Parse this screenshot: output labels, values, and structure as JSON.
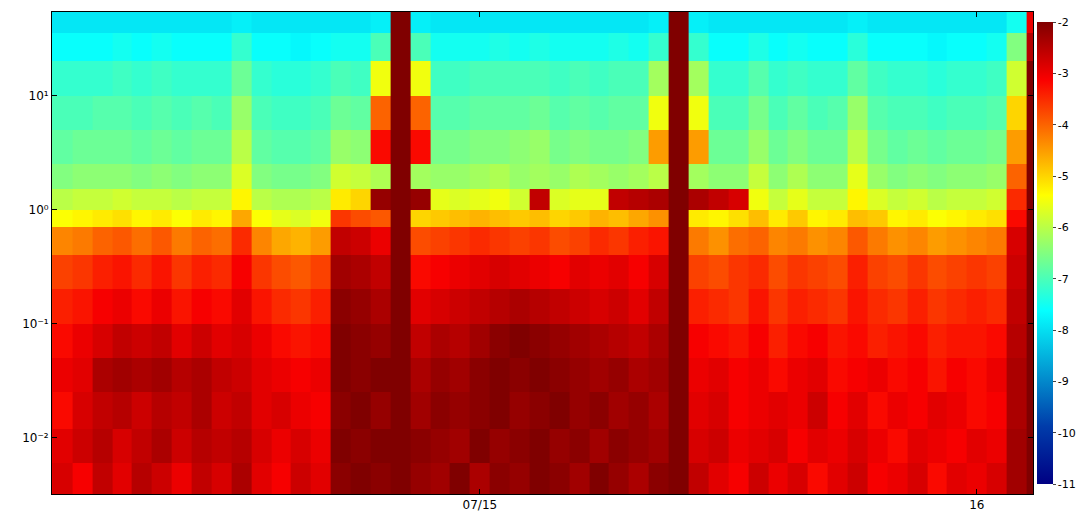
{
  "chart_data": {
    "type": "heatmap",
    "log": "y",
    "xlim": [
      14.139,
      16.113
    ],
    "ylim": [
      0.0032,
      54
    ],
    "xticks": [
      {
        "value": 15,
        "label": "07/15"
      },
      {
        "value": 16,
        "label": "16"
      }
    ],
    "yticks": [
      {
        "value": 0.01,
        "label": "10⁻²"
      },
      {
        "value": 0.1,
        "label": "10⁻¹"
      },
      {
        "value": 1,
        "label": "10⁰"
      },
      {
        "value": 10,
        "label": "10¹"
      }
    ],
    "color_range": [
      -11,
      -2
    ],
    "color_ticks": [
      -2,
      -3,
      -4,
      -5,
      -6,
      -7,
      -8,
      -9,
      -10,
      -11
    ],
    "x_bins": [
      14.1,
      14.14,
      14.18,
      14.22,
      14.26,
      14.3,
      14.34,
      14.38,
      14.42,
      14.46,
      14.5,
      14.54,
      14.58,
      14.62,
      14.66,
      14.7,
      14.74,
      14.78,
      14.82,
      14.86,
      14.9,
      14.94,
      14.98,
      15.02,
      15.06,
      15.1,
      15.14,
      15.18,
      15.22,
      15.26,
      15.3,
      15.34,
      15.38,
      15.42,
      15.46,
      15.5,
      15.54,
      15.58,
      15.62,
      15.66,
      15.7,
      15.74,
      15.78,
      15.82,
      15.86,
      15.9,
      15.94,
      15.98,
      16.02,
      16.06,
      16.1,
      16.14
    ],
    "y_bins": [
      0.0032,
      0.006,
      0.012,
      0.025,
      0.05,
      0.1,
      0.2,
      0.4,
      0.7,
      1.0,
      1.5,
      2.5,
      5,
      10,
      20,
      35,
      54
    ],
    "z": [
      [
        -3.0,
        -2.8,
        -3.1,
        -2.6,
        -2.9,
        -2.5,
        -2.7,
        -3.0,
        -2.6,
        -2.8,
        -2.4,
        -2.9,
        -3.1,
        -2.7,
        -2.9,
        -2.1,
        -2.0,
        -2.1,
        -2.0,
        -2.2,
        -2.3,
        -2.0,
        -2.4,
        -2.1,
        -2.2,
        -2.0,
        -2.1,
        -2.3,
        -2.0,
        -2.2,
        -2.4,
        -2.1,
        -2.0,
        -2.6,
        -2.9,
        -3.1,
        -2.7,
        -3.0,
        -2.8,
        -3.2,
        -2.9,
        -2.7,
        -3.1,
        -3.0,
        -2.8,
        -3.2,
        -2.9,
        -3.0,
        -2.8,
        -2.3,
        -2.0
      ],
      [
        -3.1,
        -2.9,
        -2.7,
        -2.5,
        -2.8,
        -2.6,
        -2.4,
        -2.7,
        -2.5,
        -2.6,
        -2.5,
        -2.8,
        -3.0,
        -2.8,
        -3.0,
        -2.0,
        -2.1,
        -2.0,
        -2.0,
        -2.1,
        -2.2,
        -2.3,
        -2.0,
        -2.2,
        -2.1,
        -2.0,
        -2.2,
        -2.1,
        -2.3,
        -2.1,
        -2.2,
        -2.3,
        -2.0,
        -2.8,
        -2.7,
        -3.0,
        -2.9,
        -2.8,
        -3.1,
        -2.9,
        -3.0,
        -2.8,
        -3.0,
        -3.2,
        -2.9,
        -3.0,
        -3.1,
        -2.9,
        -3.0,
        -2.3,
        -2.0
      ],
      [
        -3.0,
        -3.2,
        -2.8,
        -2.6,
        -2.5,
        -2.7,
        -2.5,
        -2.6,
        -2.4,
        -2.7,
        -2.6,
        -2.9,
        -2.8,
        -3.0,
        -3.1,
        -2.1,
        -2.0,
        -2.2,
        -2.0,
        -2.3,
        -2.1,
        -2.2,
        -2.1,
        -2.0,
        -2.2,
        -2.1,
        -2.0,
        -2.2,
        -2.1,
        -2.3,
        -2.2,
        -2.4,
        -2.0,
        -2.9,
        -2.8,
        -3.1,
        -3.0,
        -2.9,
        -3.0,
        -2.7,
        -3.1,
        -2.9,
        -3.2,
        -3.0,
        -3.1,
        -2.9,
        -3.0,
        -3.2,
        -3.1,
        -2.4,
        -2.0
      ],
      [
        -3.1,
        -3.0,
        -2.9,
        -2.4,
        -2.3,
        -2.4,
        -2.3,
        -2.5,
        -2.4,
        -2.6,
        -2.7,
        -2.9,
        -3.0,
        -3.1,
        -3.0,
        -2.0,
        -2.1,
        -2.0,
        -2.0,
        -2.4,
        -2.2,
        -2.3,
        -2.1,
        -2.0,
        -2.1,
        -2.0,
        -2.1,
        -2.2,
        -2.3,
        -2.2,
        -2.4,
        -2.3,
        -2.0,
        -3.0,
        -2.9,
        -3.1,
        -3.0,
        -3.2,
        -3.0,
        -2.9,
        -3.2,
        -3.1,
        -3.0,
        -3.2,
        -3.1,
        -3.3,
        -3.1,
        -3.2,
        -3.0,
        -2.4,
        -2.0
      ],
      [
        -3.3,
        -3.2,
        -3.0,
        -2.8,
        -2.6,
        -2.7,
        -2.6,
        -2.9,
        -2.7,
        -2.9,
        -2.8,
        -3.0,
        -3.2,
        -3.3,
        -3.2,
        -2.0,
        -2.1,
        -2.2,
        -2.0,
        -2.6,
        -2.4,
        -2.5,
        -2.3,
        -2.1,
        -2.0,
        -2.1,
        -2.2,
        -2.3,
        -2.4,
        -2.5,
        -2.6,
        -2.4,
        -2.0,
        -3.1,
        -3.2,
        -3.3,
        -3.1,
        -3.4,
        -3.2,
        -3.1,
        -3.3,
        -3.2,
        -3.4,
        -3.3,
        -3.2,
        -3.4,
        -3.3,
        -3.3,
        -3.2,
        -2.5,
        -2.0
      ],
      [
        -3.5,
        -3.4,
        -3.3,
        -3.1,
        -3.0,
        -3.2,
        -3.0,
        -3.3,
        -3.1,
        -3.2,
        -2.9,
        -3.3,
        -3.5,
        -3.6,
        -3.4,
        -2.1,
        -2.2,
        -2.4,
        -2.0,
        -2.9,
        -2.8,
        -2.7,
        -2.6,
        -2.5,
        -2.4,
        -2.5,
        -2.6,
        -2.7,
        -2.8,
        -2.7,
        -2.9,
        -2.6,
        -2.0,
        -3.4,
        -3.5,
        -3.6,
        -3.3,
        -3.6,
        -3.4,
        -3.5,
        -3.6,
        -3.3,
        -3.5,
        -3.6,
        -3.4,
        -3.6,
        -3.5,
        -3.4,
        -3.5,
        -2.6,
        -2.0
      ],
      [
        -3.8,
        -3.7,
        -3.6,
        -3.4,
        -3.3,
        -3.5,
        -3.3,
        -3.6,
        -3.4,
        -3.5,
        -3.1,
        -3.6,
        -3.8,
        -3.9,
        -3.7,
        -2.3,
        -2.4,
        -2.6,
        -2.0,
        -3.2,
        -3.1,
        -3.0,
        -2.9,
        -2.8,
        -2.9,
        -3.0,
        -3.1,
        -2.9,
        -3.0,
        -2.9,
        -3.1,
        -2.8,
        -2.0,
        -3.7,
        -3.8,
        -3.6,
        -3.5,
        -3.8,
        -3.6,
        -3.7,
        -3.8,
        -3.4,
        -3.7,
        -3.8,
        -3.6,
        -3.8,
        -3.7,
        -3.6,
        -3.7,
        -2.7,
        -2.0
      ],
      [
        -4.4,
        -4.3,
        -4.2,
        -4.0,
        -3.9,
        -4.1,
        -3.9,
        -4.2,
        -4.0,
        -4.1,
        -3.5,
        -4.3,
        -4.6,
        -4.7,
        -4.5,
        -2.6,
        -2.7,
        -3.0,
        -2.0,
        -3.8,
        -3.7,
        -3.6,
        -3.5,
        -3.6,
        -3.7,
        -3.6,
        -3.8,
        -3.7,
        -3.5,
        -3.6,
        -3.4,
        -3.3,
        -2.0,
        -4.2,
        -4.4,
        -4.1,
        -4.0,
        -4.3,
        -4.2,
        -4.4,
        -4.3,
        -3.9,
        -4.2,
        -4.4,
        -4.3,
        -4.5,
        -4.4,
        -4.3,
        -4.2,
        -2.8,
        -2.0
      ],
      [
        -5.5,
        -5.4,
        -5.3,
        -5.2,
        -5.1,
        -5.3,
        -5.2,
        -5.4,
        -5.2,
        -5.3,
        -4.6,
        -5.4,
        -5.6,
        -5.7,
        -5.5,
        -3.6,
        -3.8,
        -3.9,
        -2.0,
        -5.0,
        -4.9,
        -4.8,
        -4.7,
        -4.8,
        -4.9,
        -4.8,
        -5.0,
        -4.9,
        -4.7,
        -4.8,
        -4.6,
        -4.4,
        -2.0,
        -5.2,
        -5.3,
        -5.1,
        -4.8,
        -5.2,
        -4.9,
        -5.3,
        -5.2,
        -4.8,
        -4.9,
        -5.3,
        -5.2,
        -5.4,
        -5.3,
        -5.2,
        -5.1,
        -3.2,
        -2.0
      ],
      [
        -6.0,
        -6.0,
        -5.9,
        -5.9,
        -5.8,
        -5.9,
        -5.9,
        -6.0,
        -5.9,
        -5.9,
        -5.3,
        -6.0,
        -6.1,
        -6.1,
        -6.0,
        -5.2,
        -5.0,
        -2.2,
        -2.0,
        -2.2,
        -5.6,
        -5.7,
        -5.6,
        -5.5,
        -5.8,
        -2.6,
        -5.7,
        -5.6,
        -5.6,
        -2.6,
        -2.5,
        -2.4,
        -2.0,
        -2.4,
        -2.6,
        -2.8,
        -5.5,
        -5.9,
        -5.6,
        -5.9,
        -5.9,
        -5.3,
        -5.7,
        -5.9,
        -5.8,
        -6.0,
        -5.9,
        -5.9,
        -5.8,
        -3.5,
        -2.0
      ],
      [
        -6.5,
        -6.5,
        -6.4,
        -6.4,
        -6.4,
        -6.5,
        -6.4,
        -6.5,
        -6.4,
        -6.4,
        -5.7,
        -6.5,
        -6.6,
        -6.6,
        -6.5,
        -5.8,
        -5.9,
        -6.1,
        -2.0,
        -6.2,
        -6.3,
        -6.3,
        -6.2,
        -6.1,
        -6.3,
        -6.2,
        -6.3,
        -6.1,
        -6.2,
        -6.3,
        -6.2,
        -6.0,
        -2.0,
        -6.2,
        -6.4,
        -6.4,
        -5.9,
        -6.4,
        -6.1,
        -6.4,
        -6.4,
        -5.6,
        -6.3,
        -6.5,
        -6.4,
        -6.5,
        -6.4,
        -6.4,
        -6.3,
        -4.0,
        -2.0
      ],
      [
        -6.8,
        -6.8,
        -6.7,
        -6.7,
        -6.7,
        -6.8,
        -6.7,
        -6.8,
        -6.7,
        -6.7,
        -6.0,
        -6.8,
        -6.9,
        -6.9,
        -6.8,
        -6.3,
        -6.4,
        -3.2,
        -2.0,
        -3.2,
        -6.6,
        -6.6,
        -6.5,
        -6.5,
        -6.4,
        -6.3,
        -6.6,
        -6.5,
        -6.6,
        -6.6,
        -6.5,
        -4.5,
        -2.0,
        -4.5,
        -6.7,
        -6.7,
        -6.3,
        -6.7,
        -6.5,
        -6.7,
        -6.7,
        -6.0,
        -6.6,
        -6.8,
        -6.7,
        -6.8,
        -6.7,
        -6.7,
        -6.6,
        -4.5,
        -2.0
      ],
      [
        -7.0,
        -7.0,
        -7.0,
        -6.9,
        -6.9,
        -7.0,
        -6.9,
        -7.0,
        -6.9,
        -7.0,
        -6.3,
        -7.0,
        -7.1,
        -7.1,
        -7.0,
        -6.7,
        -6.8,
        -4.0,
        -2.0,
        -4.0,
        -6.9,
        -6.9,
        -6.8,
        -6.8,
        -6.8,
        -6.7,
        -6.9,
        -6.8,
        -6.9,
        -6.8,
        -6.8,
        -5.5,
        -2.0,
        -5.5,
        -7.0,
        -7.0,
        -6.6,
        -7.0,
        -6.8,
        -7.0,
        -6.9,
        -6.3,
        -6.9,
        -7.0,
        -7.0,
        -7.1,
        -7.0,
        -7.0,
        -6.9,
        -5.0,
        -2.0
      ],
      [
        -7.2,
        -7.2,
        -7.2,
        -7.2,
        -7.1,
        -7.2,
        -7.1,
        -7.2,
        -7.2,
        -7.2,
        -6.7,
        -7.2,
        -7.3,
        -7.3,
        -7.2,
        -7.0,
        -7.1,
        -5.5,
        -2.0,
        -5.5,
        -7.1,
        -7.1,
        -7.0,
        -7.0,
        -7.0,
        -7.0,
        -7.1,
        -7.0,
        -7.1,
        -7.0,
        -7.0,
        -6.2,
        -2.0,
        -6.2,
        -7.2,
        -7.2,
        -6.9,
        -7.2,
        -7.1,
        -7.2,
        -7.2,
        -6.8,
        -7.1,
        -7.2,
        -7.2,
        -7.3,
        -7.2,
        -7.2,
        -7.1,
        -5.8,
        -2.0
      ],
      [
        -7.6,
        -7.6,
        -7.6,
        -7.6,
        -7.5,
        -7.6,
        -7.5,
        -7.6,
        -7.6,
        -7.6,
        -7.2,
        -7.6,
        -7.6,
        -7.7,
        -7.6,
        -7.5,
        -7.5,
        -7.0,
        -2.0,
        -7.0,
        -7.5,
        -7.5,
        -7.5,
        -7.4,
        -7.5,
        -7.4,
        -7.5,
        -7.5,
        -7.5,
        -7.4,
        -7.5,
        -7.2,
        -2.0,
        -7.2,
        -7.6,
        -7.6,
        -7.4,
        -7.6,
        -7.5,
        -7.6,
        -7.6,
        -7.3,
        -7.6,
        -7.6,
        -7.6,
        -7.7,
        -7.6,
        -7.6,
        -7.5,
        -6.5,
        -2.5
      ],
      [
        -7.9,
        -7.9,
        -7.9,
        -7.9,
        -7.9,
        -7.9,
        -7.9,
        -7.9,
        -7.9,
        -7.9,
        -7.8,
        -7.9,
        -7.9,
        -7.9,
        -7.9,
        -7.9,
        -7.9,
        -7.8,
        -2.0,
        -7.8,
        -7.9,
        -7.9,
        -7.9,
        -7.9,
        -7.9,
        -7.9,
        -7.9,
        -7.9,
        -7.9,
        -7.9,
        -7.9,
        -7.8,
        -2.0,
        -7.8,
        -7.9,
        -7.9,
        -7.9,
        -7.9,
        -7.9,
        -7.9,
        -7.9,
        -7.8,
        -7.9,
        -7.9,
        -7.9,
        -7.9,
        -7.9,
        -7.9,
        -7.9,
        -7.5,
        -3.0
      ]
    ]
  }
}
